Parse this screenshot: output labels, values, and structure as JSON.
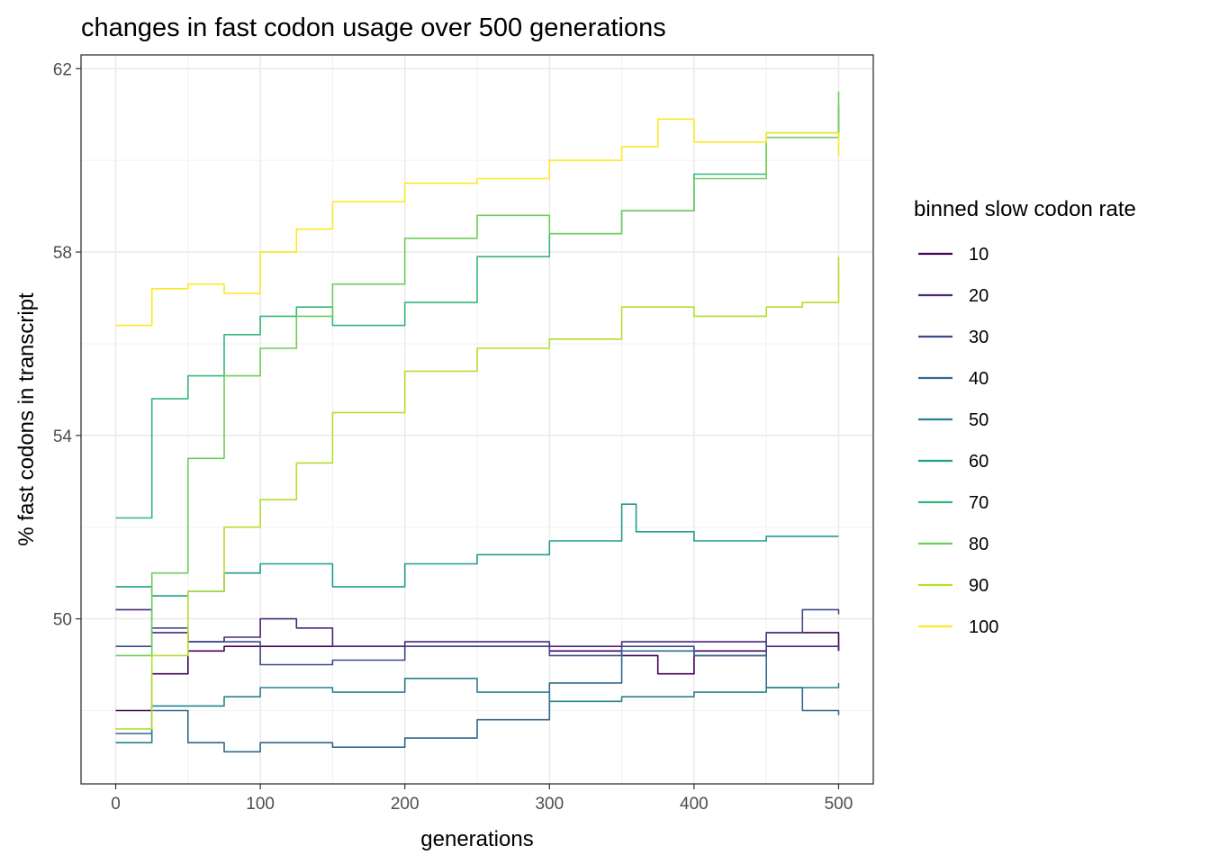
{
  "chart_data": {
    "type": "line",
    "title": "changes in fast codon usage over 500 generations",
    "xlabel": "generations",
    "ylabel": "% fast codons in transcript",
    "xlim": [
      -24,
      524
    ],
    "ylim": [
      46.4,
      62.3
    ],
    "x_ticks": [
      0,
      100,
      200,
      300,
      400,
      500
    ],
    "y_ticks": [
      50,
      54,
      58,
      62
    ],
    "x_minor_grid": [
      50,
      150,
      250,
      350,
      450
    ],
    "y_minor_grid": [
      48,
      52,
      56,
      60
    ],
    "grid": true,
    "legend": {
      "title": "binned slow codon rate",
      "position": "right"
    },
    "series": [
      {
        "name": "10",
        "color": "#440154",
        "x": [
          0,
          25,
          50,
          75,
          100,
          150,
          200,
          250,
          300,
          350,
          375,
          400,
          450,
          500
        ],
        "y": [
          48.0,
          48.8,
          49.3,
          49.4,
          49.4,
          49.4,
          49.4,
          49.4,
          49.3,
          49.2,
          48.8,
          49.3,
          49.7,
          49.3
        ]
      },
      {
        "name": "20",
        "color": "#482878",
        "x": [
          0,
          25,
          50,
          75,
          100,
          125,
          150,
          200,
          250,
          300,
          350,
          400,
          450,
          500
        ],
        "y": [
          50.2,
          49.7,
          49.5,
          49.6,
          50.0,
          49.8,
          49.4,
          49.5,
          49.5,
          49.4,
          49.5,
          49.5,
          49.4,
          49.3
        ]
      },
      {
        "name": "30",
        "color": "#3E4989",
        "x": [
          0,
          25,
          50,
          100,
          150,
          200,
          250,
          300,
          350,
          400,
          450,
          475,
          500
        ],
        "y": [
          49.4,
          49.8,
          49.5,
          49.0,
          49.1,
          49.4,
          49.4,
          49.2,
          49.4,
          49.2,
          49.7,
          50.2,
          50.1
        ]
      },
      {
        "name": "40",
        "color": "#31688E",
        "x": [
          0,
          25,
          50,
          75,
          100,
          150,
          200,
          250,
          300,
          350,
          400,
          450,
          475,
          500
        ],
        "y": [
          47.5,
          48.0,
          47.3,
          47.1,
          47.3,
          47.2,
          47.4,
          47.8,
          48.6,
          49.3,
          49.2,
          48.5,
          48.0,
          47.9
        ]
      },
      {
        "name": "50",
        "color": "#26828E",
        "x": [
          0,
          25,
          50,
          75,
          100,
          150,
          200,
          250,
          300,
          350,
          400,
          450,
          500
        ],
        "y": [
          47.3,
          48.1,
          48.1,
          48.3,
          48.5,
          48.4,
          48.7,
          48.4,
          48.2,
          48.3,
          48.4,
          48.5,
          48.6
        ]
      },
      {
        "name": "60",
        "color": "#1F9E89",
        "x": [
          0,
          25,
          50,
          75,
          100,
          125,
          150,
          200,
          250,
          300,
          350,
          360,
          400,
          450,
          500
        ],
        "y": [
          50.7,
          50.5,
          50.6,
          51.0,
          51.2,
          51.2,
          50.7,
          51.2,
          51.4,
          51.7,
          52.5,
          51.9,
          51.7,
          51.8,
          51.8
        ]
      },
      {
        "name": "70",
        "color": "#35B779",
        "x": [
          0,
          25,
          50,
          75,
          100,
          125,
          150,
          200,
          250,
          300,
          350,
          400,
          450,
          500
        ],
        "y": [
          52.2,
          54.8,
          55.3,
          56.2,
          56.6,
          56.8,
          56.4,
          56.9,
          57.9,
          58.4,
          58.9,
          59.7,
          60.6,
          61.2
        ]
      },
      {
        "name": "80",
        "color": "#6DCD59",
        "x": [
          0,
          25,
          50,
          75,
          100,
          125,
          150,
          200,
          250,
          300,
          350,
          400,
          450,
          500
        ],
        "y": [
          49.2,
          51.0,
          53.5,
          55.3,
          55.9,
          56.6,
          57.3,
          58.3,
          58.8,
          58.4,
          58.9,
          59.6,
          60.5,
          61.5
        ]
      },
      {
        "name": "90",
        "color": "#B4DE2C",
        "x": [
          0,
          25,
          50,
          75,
          100,
          125,
          150,
          200,
          250,
          300,
          350,
          400,
          450,
          475,
          500
        ],
        "y": [
          47.6,
          49.2,
          50.6,
          52.0,
          52.6,
          53.4,
          54.5,
          55.4,
          55.9,
          56.1,
          56.8,
          56.6,
          56.8,
          56.9,
          57.9
        ]
      },
      {
        "name": "100",
        "color": "#FDE725",
        "x": [
          0,
          25,
          50,
          75,
          100,
          125,
          150,
          200,
          250,
          300,
          350,
          375,
          400,
          450,
          500
        ],
        "y": [
          56.4,
          57.2,
          57.3,
          57.1,
          58.0,
          58.5,
          59.1,
          59.5,
          59.6,
          60.0,
          60.3,
          60.9,
          60.4,
          60.6,
          60.1
        ]
      }
    ]
  }
}
